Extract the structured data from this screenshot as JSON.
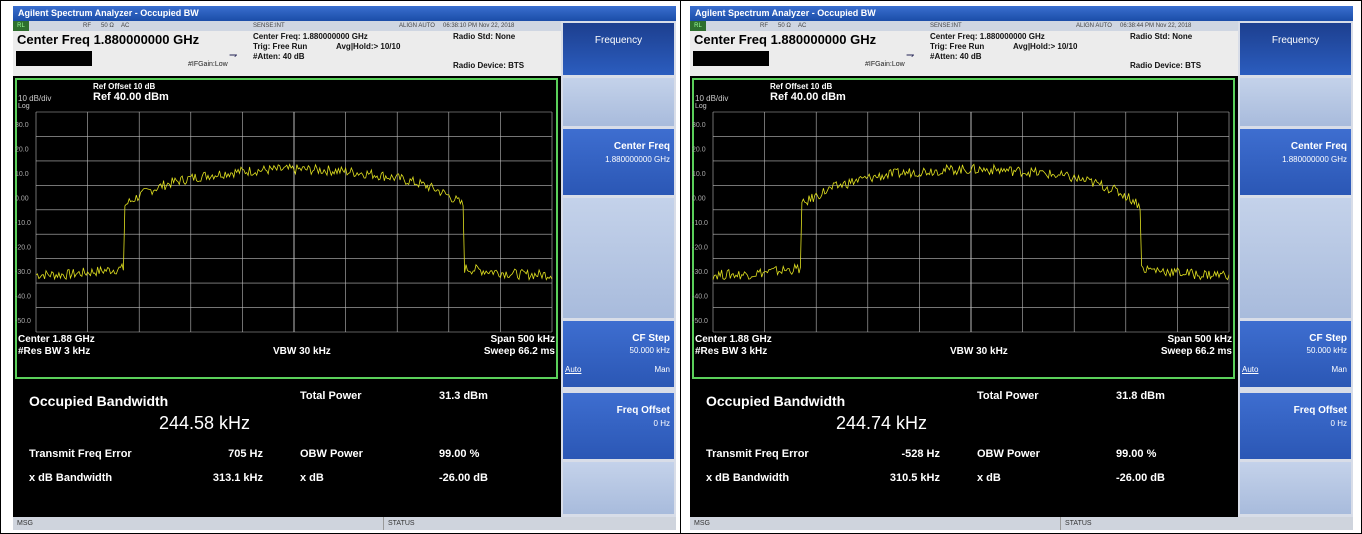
{
  "colors": {
    "trace": "#e0e020",
    "frame": "#5bd05b",
    "grid": "#bbbbbb",
    "softkey": "#2b57b5"
  },
  "panels": [
    {
      "title": "Agilent Spectrum Analyzer - Occupied BW",
      "status": {
        "rl": "RL",
        "rf": "RF",
        "ohm": "50 Ω",
        "ac": "AC",
        "sense": "SENSE:INT",
        "align": "ALIGN AUTO",
        "time": "06:38:10 PM Nov 22, 2018"
      },
      "center_freq_label": "Center Freq 1.880000000 GHz",
      "ifgain": "#IFGain:Low",
      "cf_info": "Center Freq: 1.880000000 GHz",
      "trig": "Trig: Free Run",
      "avg": "Avg|Hold:> 10/10",
      "atten": "#Atten: 40 dB",
      "radio_std": "Radio Std: None",
      "radio_device": "Radio Device: BTS",
      "ref_offset": "Ref Offset 10 dB",
      "ref_level": "Ref 40.00 dBm",
      "scale": "10 dB/div",
      "log": "Log",
      "y_ticks": [
        "30.0",
        "20.0",
        "10.0",
        "0.00",
        "-10.0",
        "-20.0",
        "-30.0",
        "-40.0",
        "-50.0"
      ],
      "center": "Center 1.88 GHz",
      "span": "Span 500 kHz",
      "rbw": "#Res BW 3 kHz",
      "vbw": "VBW 30 kHz",
      "sweep": "Sweep 66.2 ms",
      "meas": {
        "title": "Occupied Bandwidth",
        "value": "244.58 kHz",
        "total_power_label": "Total Power",
        "total_power": "31.3 dBm",
        "tfe_label": "Transmit Freq Error",
        "tfe": "705 Hz",
        "obw_power_label": "OBW Power",
        "obw_power": "99.00 %",
        "xdb_bw_label": "x dB Bandwidth",
        "xdb_bw": "313.1 kHz",
        "xdb_label": "x dB",
        "xdb": "-26.00 dB"
      },
      "softkeys": {
        "header": "Frequency",
        "center_freq": "Center Freq",
        "center_freq_value": "1.880000000 GHz",
        "cf_step": "CF Step",
        "cf_step_value": "50.000 kHz",
        "auto": "Auto",
        "man": "Man",
        "freq_offset": "Freq Offset",
        "freq_offset_value": "0 Hz"
      },
      "bottom": {
        "msg": "MSG",
        "status": "STATUS"
      }
    },
    {
      "title": "Agilent Spectrum Analyzer - Occupied BW",
      "status": {
        "rl": "RL",
        "rf": "RF",
        "ohm": "50 Ω",
        "ac": "AC",
        "sense": "SENSE:INT",
        "align": "ALIGN AUTO",
        "time": "06:38:44 PM Nov 22, 2018"
      },
      "center_freq_label": "Center Freq 1.880000000 GHz",
      "ifgain": "#IFGain:Low",
      "cf_info": "Center Freq: 1.880000000 GHz",
      "trig": "Trig: Free Run",
      "avg": "Avg|Hold:> 10/10",
      "atten": "#Atten: 40 dB",
      "radio_std": "Radio Std: None",
      "radio_device": "Radio Device: BTS",
      "ref_offset": "Ref Offset 10 dB",
      "ref_level": "Ref 40.00 dBm",
      "scale": "10 dB/div",
      "log": "Log",
      "y_ticks": [
        "30.0",
        "20.0",
        "10.0",
        "0.00",
        "-10.0",
        "-20.0",
        "-30.0",
        "-40.0",
        "-50.0"
      ],
      "center": "Center 1.88 GHz",
      "span": "Span 500 kHz",
      "rbw": "#Res BW 3 kHz",
      "vbw": "VBW 30 kHz",
      "sweep": "Sweep 66.2 ms",
      "meas": {
        "title": "Occupied Bandwidth",
        "value": "244.74 kHz",
        "total_power_label": "Total Power",
        "total_power": "31.8 dBm",
        "tfe_label": "Transmit Freq Error",
        "tfe": "-528 Hz",
        "obw_power_label": "OBW Power",
        "obw_power": "99.00 %",
        "xdb_bw_label": "x dB Bandwidth",
        "xdb_bw": "310.5 kHz",
        "xdb_label": "x dB",
        "xdb": "-26.00 dB"
      },
      "softkeys": {
        "header": "Frequency",
        "center_freq": "Center Freq",
        "center_freq_value": "1.880000000 GHz",
        "cf_step": "CF Step",
        "cf_step_value": "50.000 kHz",
        "auto": "Auto",
        "man": "Man",
        "freq_offset": "Freq Offset",
        "freq_offset_value": "0 Hz"
      },
      "bottom": {
        "msg": "MSG",
        "status": "STATUS"
      }
    }
  ]
}
